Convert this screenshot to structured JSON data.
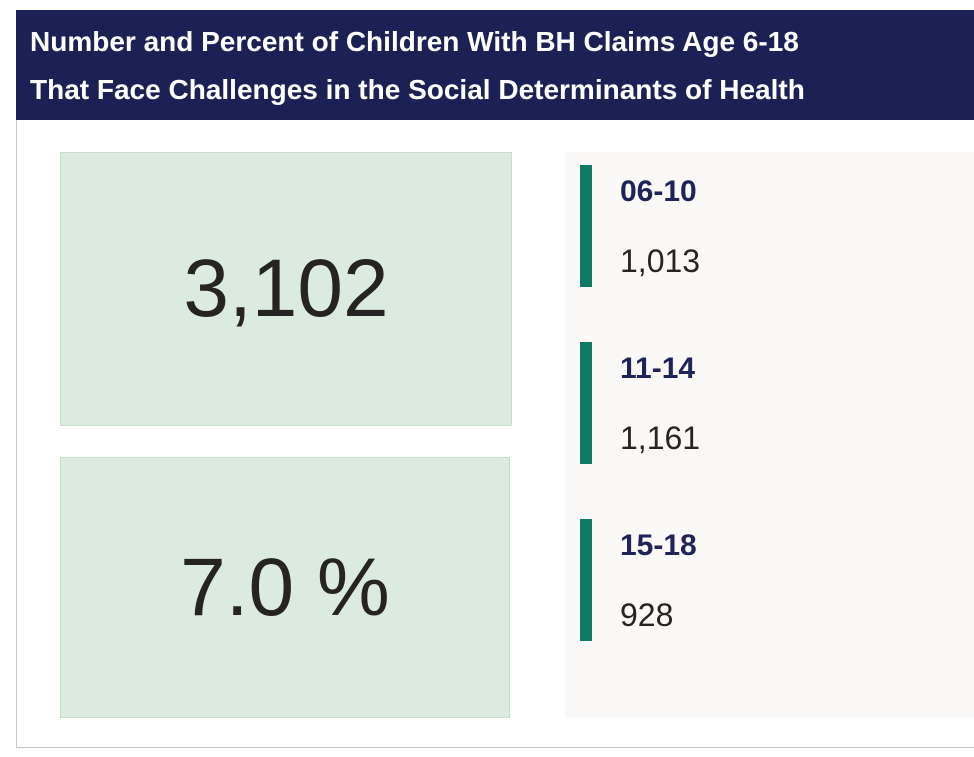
{
  "header": {
    "title": [
      "Number and Percent of Children With BH Claims Age 6-18",
      "That Face Challenges in the Social Determinants of Health"
    ]
  },
  "cards": [
    {
      "value": "3,102"
    },
    {
      "value": "7.0 %"
    }
  ],
  "groups": [
    {
      "label": "06-10",
      "value": "1,013"
    },
    {
      "label": "11-14",
      "value": "1,161"
    },
    {
      "label": "15-18",
      "value": "928"
    }
  ]
}
